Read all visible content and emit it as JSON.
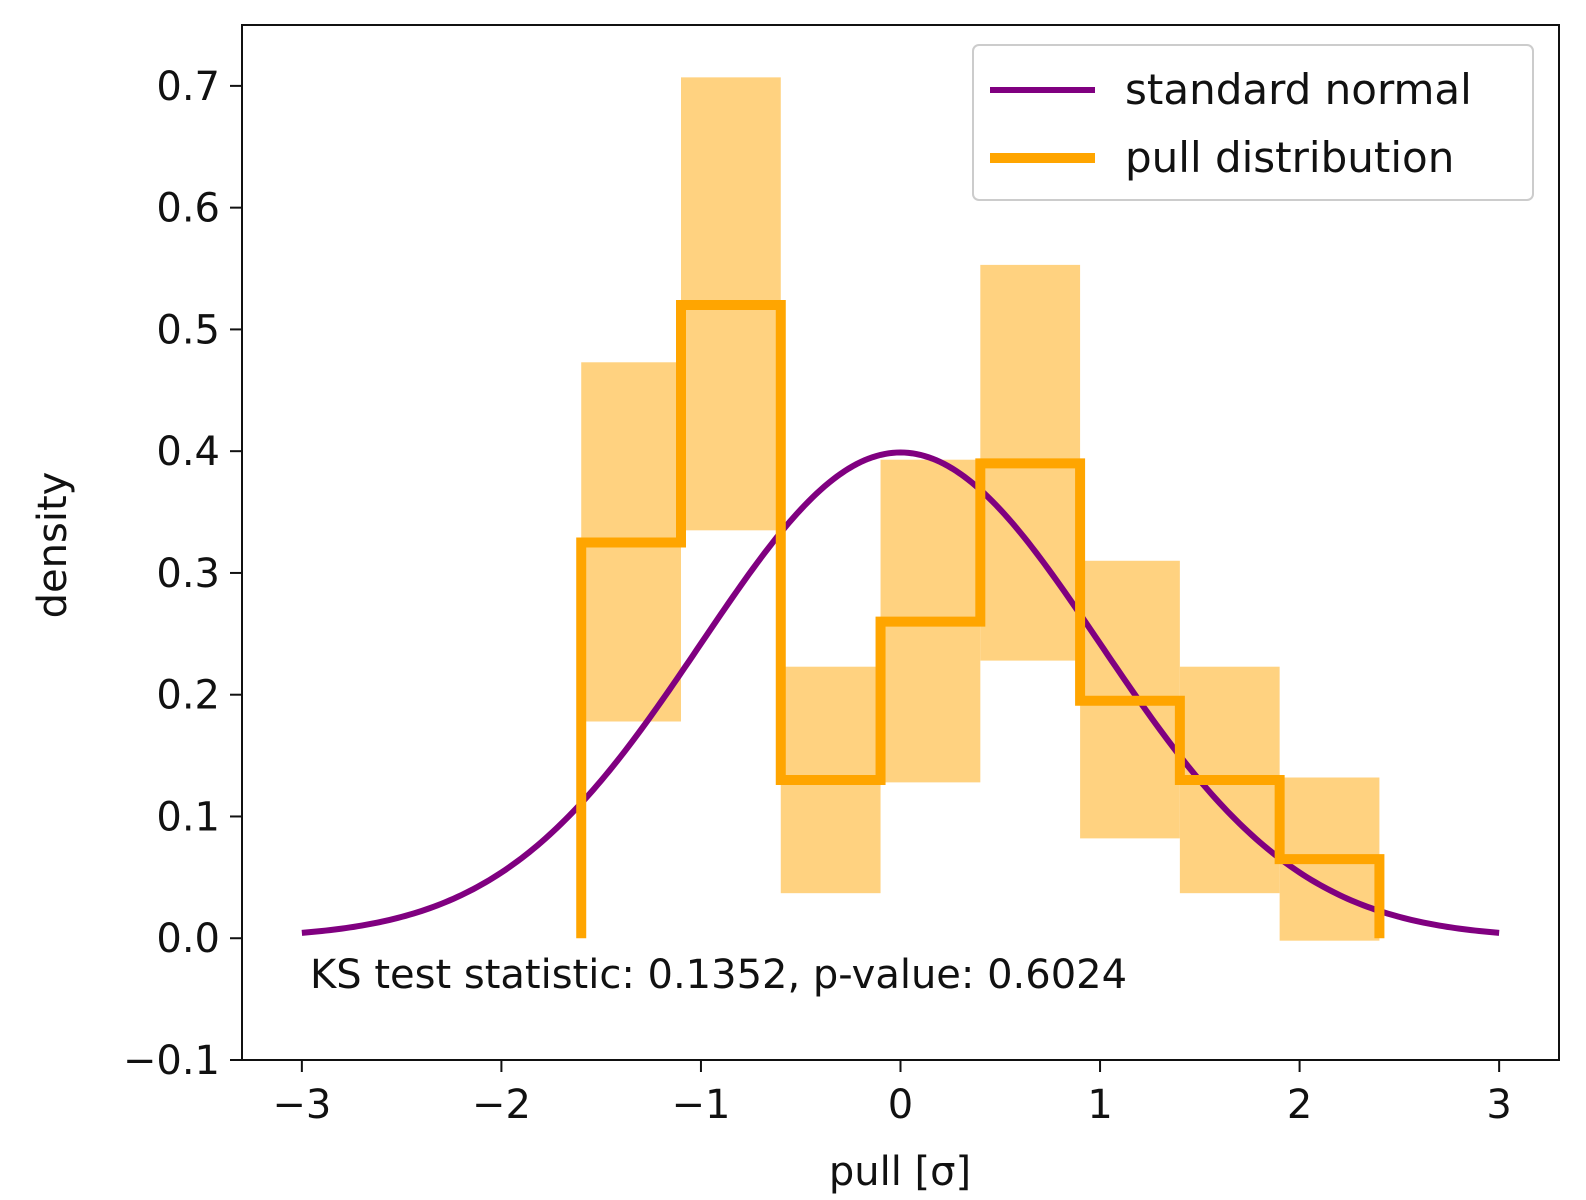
{
  "chart_data": {
    "type": "histogram",
    "xlabel": "pull [σ]",
    "ylabel": "density",
    "xlim": [
      -3.3,
      3.3
    ],
    "ylim": [
      -0.1,
      0.75
    ],
    "x_ticks": [
      -3,
      -2,
      -1,
      0,
      1,
      2,
      3
    ],
    "x_tick_labels": [
      "−3",
      "−2",
      "−1",
      "0",
      "1",
      "2",
      "3"
    ],
    "y_ticks": [
      -0.1,
      0.0,
      0.1,
      0.2,
      0.3,
      0.4,
      0.5,
      0.6,
      0.7
    ],
    "y_tick_labels": [
      "−0.1",
      "0.0",
      "0.1",
      "0.2",
      "0.3",
      "0.4",
      "0.5",
      "0.6",
      "0.7"
    ],
    "grid": false,
    "legend_position": "top-right",
    "annotation": "KS test statistic: 0.1352, p-value: 0.6024",
    "series": [
      {
        "name": "standard normal",
        "kind": "line",
        "color": "#800080",
        "function": "standard normal pdf",
        "x_range": [
          -3,
          3
        ]
      },
      {
        "name": "pull distribution",
        "kind": "step",
        "color": "#FFA500",
        "band_color": "#FFD280",
        "bin_edges": [
          -1.6,
          -1.1,
          -0.6,
          -0.1,
          0.4,
          0.9,
          1.4,
          1.9,
          2.4
        ],
        "values": [
          0.325,
          0.52,
          0.13,
          0.26,
          0.39,
          0.195,
          0.13,
          0.065
        ],
        "band_lower": [
          0.178,
          0.335,
          0.037,
          0.128,
          0.228,
          0.082,
          0.037,
          -0.002
        ],
        "band_upper": [
          0.473,
          0.707,
          0.223,
          0.393,
          0.553,
          0.31,
          0.223,
          0.132
        ]
      }
    ]
  }
}
